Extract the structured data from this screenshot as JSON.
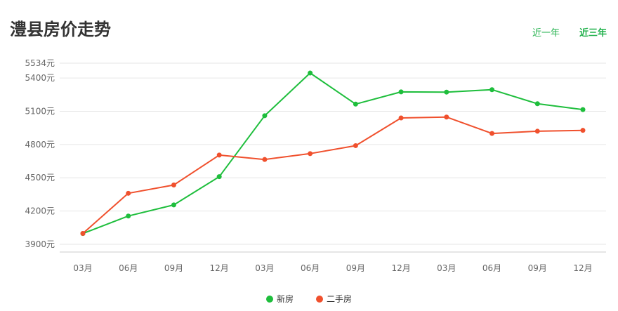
{
  "header": {
    "title": "澧县房价走势",
    "tabs": [
      {
        "label": "近一年",
        "active": false
      },
      {
        "label": "近三年",
        "active": true
      }
    ]
  },
  "chart_data": {
    "type": "line",
    "categories": [
      "03月",
      "06月",
      "09月",
      "12月",
      "03月",
      "06月",
      "09月",
      "12月",
      "03月",
      "06月",
      "09月",
      "12月"
    ],
    "y_ticks": [
      3900,
      4200,
      4500,
      4800,
      5100,
      5400,
      5534
    ],
    "y_tick_labels": [
      "3900元",
      "4200元",
      "4500元",
      "4800元",
      "5100元",
      "5400元",
      "5534元"
    ],
    "ylim": [
      3830,
      5534
    ],
    "grid": true,
    "legend_position": "bottom-center",
    "series": [
      {
        "name": "新房",
        "color": "#1ebe3c",
        "values": [
          3997,
          4155,
          4255,
          4510,
          5060,
          5445,
          5165,
          5275,
          5273,
          5295,
          5168,
          5115
        ]
      },
      {
        "name": "二手房",
        "color": "#f0502d",
        "values": [
          3998,
          4360,
          4435,
          4705,
          4665,
          4718,
          4790,
          5040,
          5048,
          4900,
          4920,
          4928
        ]
      }
    ]
  }
}
